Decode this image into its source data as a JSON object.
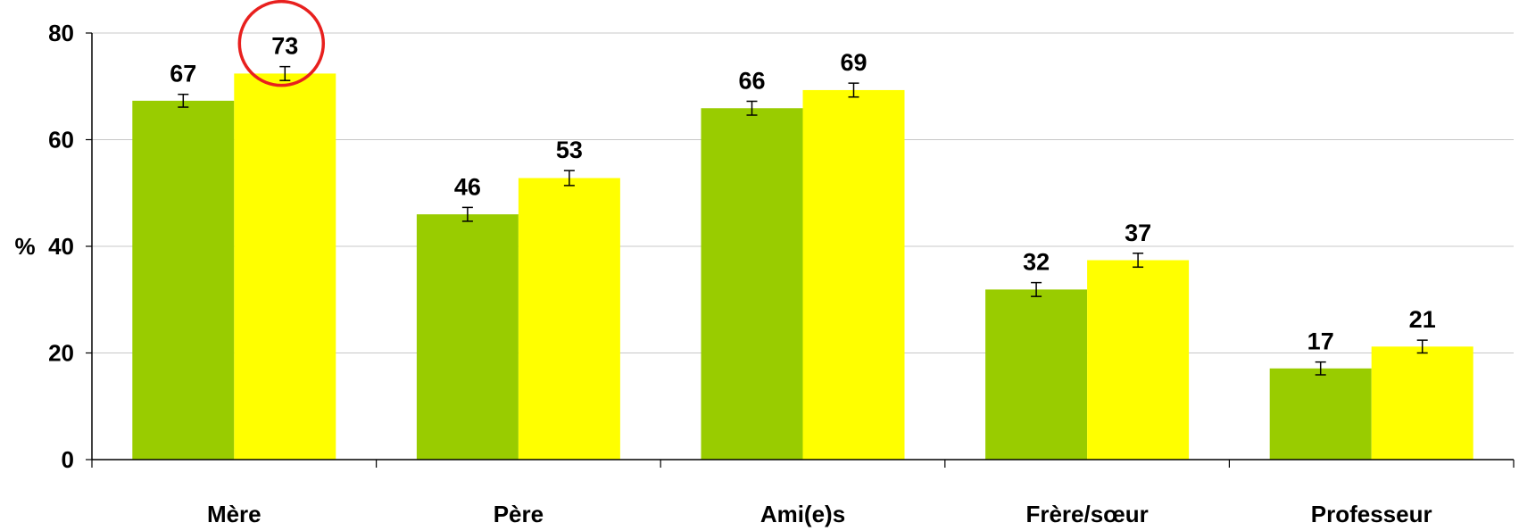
{
  "chart_data": {
    "type": "bar",
    "categories": [
      "Mère",
      "Père",
      "Ami(e)s",
      "Frère/sœur",
      "Professeur"
    ],
    "series": [
      {
        "values": [
          67,
          46,
          66,
          32,
          17
        ],
        "plot_values": [
          67.3,
          46.0,
          65.9,
          31.9,
          17.1
        ],
        "error": [
          1.2,
          1.3,
          1.3,
          1.3,
          1.2
        ],
        "color": "#99CC00"
      },
      {
        "values": [
          73,
          53,
          69,
          37,
          21
        ],
        "plot_values": [
          72.4,
          52.8,
          69.3,
          37.4,
          21.2
        ],
        "error": [
          1.3,
          1.4,
          1.3,
          1.3,
          1.2
        ],
        "color": "#FFFF00"
      }
    ],
    "ylabel": "%",
    "yticks": [
      0,
      20,
      40,
      60,
      80
    ],
    "ylim": [
      0,
      80
    ],
    "grid": true,
    "highlight": {
      "category": "Mère",
      "series": 1,
      "color": "#E8201E"
    }
  }
}
